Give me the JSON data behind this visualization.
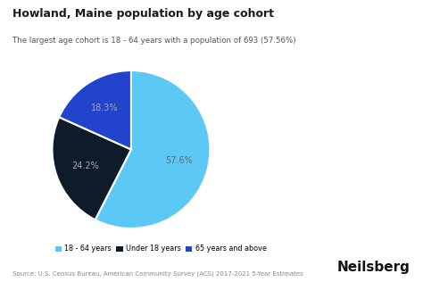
{
  "title": "Howland, Maine population by age cohort",
  "subtitle": "The largest age cohort is 18 - 64 years with a population of 693 (57.56%)",
  "source": "Source: U.S. Census Bureau, American Community Survey (ACS) 2017-2021 5-Year Estimates",
  "branding": "Neilsberg",
  "labels": [
    "18 - 64 years",
    "Under 18 years",
    "65 years and above"
  ],
  "values": [
    57.56,
    24.2,
    18.3
  ],
  "colors": [
    "#5BC8F5",
    "#0D1B2A",
    "#2244CC"
  ],
  "pct_labels": [
    "57.6%",
    "24.2%",
    "18.3%"
  ],
  "pct_colors": [
    "#666666",
    "#aaaaaa",
    "#aaaaaa"
  ],
  "startangle": 90,
  "background_color": "#ffffff"
}
